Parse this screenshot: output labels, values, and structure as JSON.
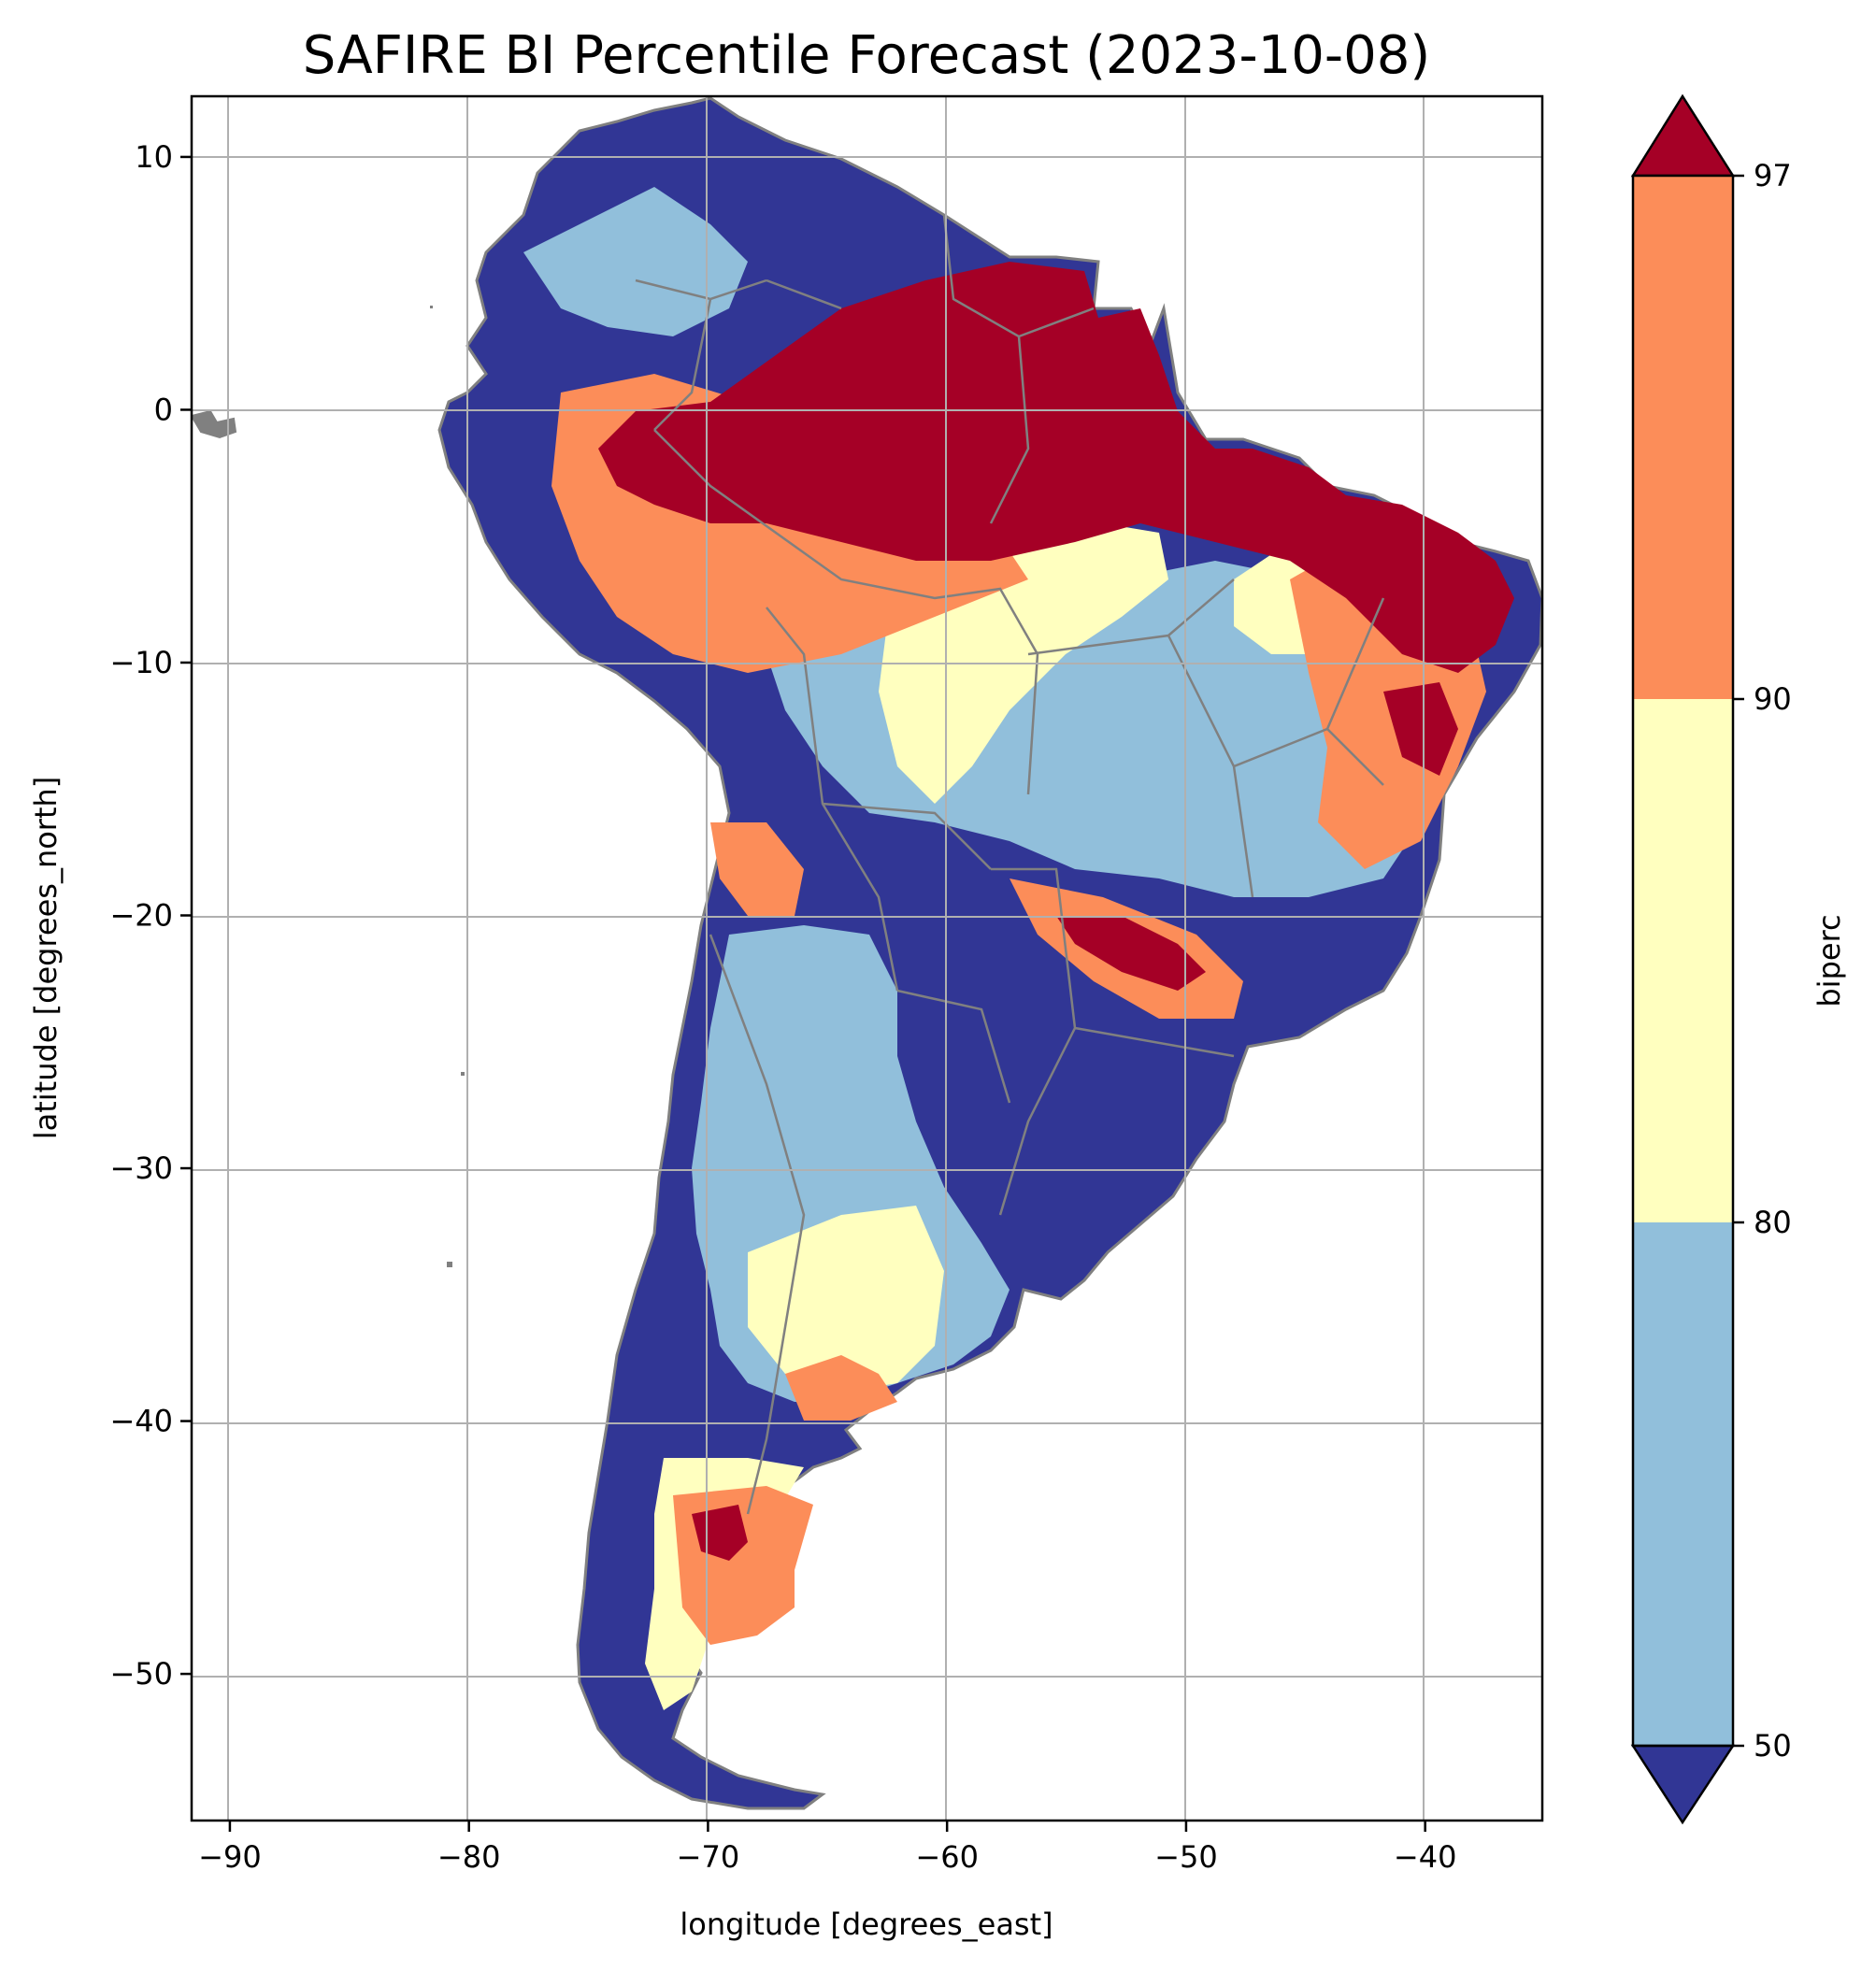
{
  "title": "SAFIRE BI Percentile Forecast (2023-10-08)",
  "xlabel": "longitude [degrees_east]",
  "ylabel": "latitude [degrees_north]",
  "colorbar_label": "biperc",
  "chart_data": {
    "type": "heatmap",
    "title": "SAFIRE BI Percentile Forecast (2023-10-08)",
    "xlabel": "longitude [degrees_east]",
    "ylabel": "latitude [degrees_north]",
    "xlim": [
      -91.6,
      -35.1
    ],
    "ylim": [
      -55.8,
      12.4
    ],
    "grid": true,
    "x_ticks": [
      -90,
      -80,
      -70,
      -60,
      -50,
      -40
    ],
    "x_tick_labels": [
      "−90",
      "−80",
      "−70",
      "−60",
      "−50",
      "−40"
    ],
    "y_ticks": [
      10,
      0,
      -10,
      -20,
      -30,
      -40,
      -50
    ],
    "y_tick_labels": [
      "10",
      "0",
      "−10",
      "−20",
      "−30",
      "−40",
      "−50"
    ],
    "colorbar": {
      "label": "biperc",
      "boundaries": [
        50,
        80,
        90,
        97
      ],
      "tick_labels": [
        "50",
        "80",
        "90",
        "97"
      ],
      "extend": "both",
      "colors": {
        "under": "#313695",
        "50-80": "#91bfdb",
        "80-90": "#ffffbf",
        "90-97": "#fc8d59",
        "over": "#a50026"
      }
    }
  }
}
